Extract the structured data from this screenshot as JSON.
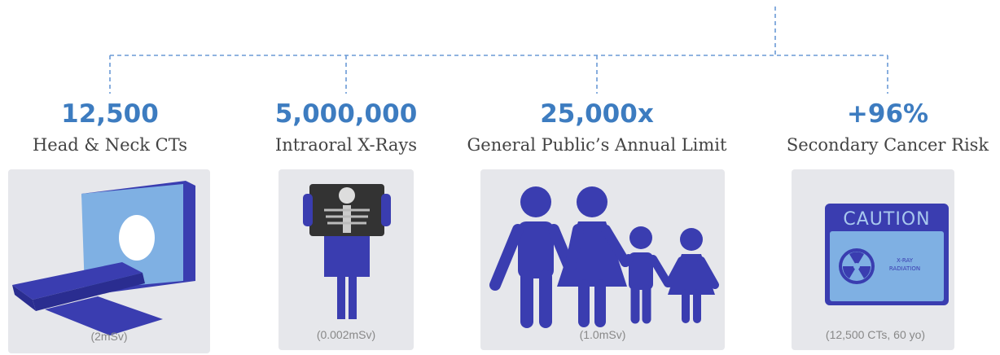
{
  "items": [
    {
      "value": "12,500",
      "label": "Head & Neck CTs",
      "note": "(2mSv)"
    },
    {
      "value": "5,000,000",
      "label": "Intraoral X-Rays",
      "note": "(0.002mSv)"
    },
    {
      "value": "25,000x",
      "label": "General Public’s Annual Limit",
      "note": "(1.0mSv)"
    },
    {
      "value": "+96%",
      "label": "Secondary Cancer Risk",
      "note": "(12,500 CTs, 60 yo)"
    }
  ],
  "caution": {
    "title": "CAUTION",
    "lines": [
      "X-RAY",
      "RADIATION"
    ]
  }
}
